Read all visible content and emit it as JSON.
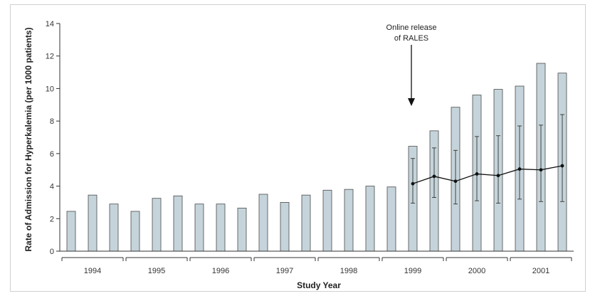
{
  "chart_data": {
    "type": "bar",
    "xlabel": "Study Year",
    "ylabel": "Rate of Admission for Hyperkalemia (per 1000 patients)",
    "ylim": [
      0,
      14
    ],
    "yticks": [
      0,
      2,
      4,
      6,
      8,
      10,
      12,
      14
    ],
    "grid": false,
    "years": [
      "1994",
      "1995",
      "1996",
      "1997",
      "1998",
      "1999",
      "2000",
      "2001"
    ],
    "quarters_per_year": 3,
    "bar_color": "#c5d4da",
    "bar_stroke": "#4a4a4a",
    "bars": [
      2.45,
      3.45,
      2.9,
      2.45,
      3.25,
      3.4,
      2.9,
      2.9,
      2.65,
      3.5,
      3.0,
      3.45,
      3.75,
      3.8,
      4.0,
      3.95,
      6.45,
      7.4,
      8.85,
      9.6,
      9.95,
      10.15,
      11.55,
      10.95
    ],
    "expected_series": {
      "start_index": 16,
      "values": [
        4.15,
        4.6,
        4.3,
        4.75,
        4.65,
        5.05,
        5.0,
        5.25
      ],
      "lower": [
        2.95,
        3.3,
        2.9,
        3.1,
        2.95,
        3.2,
        3.05,
        3.05
      ],
      "upper": [
        5.7,
        6.35,
        6.2,
        7.05,
        7.1,
        7.7,
        7.75,
        8.4
      ]
    },
    "annotation": {
      "line1": "Online release",
      "line2": "of RALES",
      "bar_index": 16
    }
  }
}
